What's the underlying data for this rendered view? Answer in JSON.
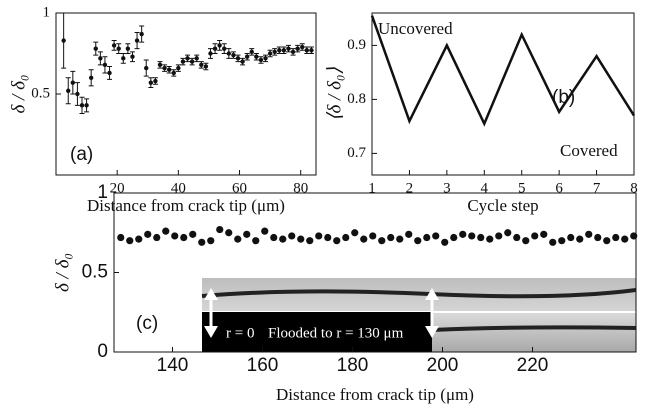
{
  "chart_data": [
    {
      "type": "errorbar",
      "panel_label": "(a)",
      "xlabel": "Distance from crack tip (μm)",
      "ylabel": "δ / δ₀",
      "xlim": [
        0,
        85
      ],
      "ylim": [
        0,
        1
      ],
      "xticks": [
        20,
        40,
        60,
        80
      ],
      "yticks": [
        0.5,
        1
      ],
      "color": "#111111",
      "x": [
        2.5,
        4,
        5.5,
        7,
        8.5,
        10,
        11.5,
        13,
        14.5,
        16,
        17.5,
        19,
        20.5,
        22,
        23.5,
        25,
        26.5,
        28,
        29.5,
        31,
        32.5,
        34,
        35.5,
        37,
        38.5,
        40,
        41.5,
        43,
        44.5,
        46,
        47.5,
        49,
        50.5,
        52,
        53.5,
        55,
        56.5,
        58,
        59.5,
        61,
        62.5,
        64,
        65.5,
        67,
        68.5,
        70,
        71.5,
        73,
        74.5,
        76,
        77.5,
        79,
        80.5,
        82,
        83.5
      ],
      "values": [
        0.83,
        0.52,
        0.57,
        0.5,
        0.43,
        0.43,
        0.6,
        0.78,
        0.72,
        0.68,
        0.63,
        0.8,
        0.78,
        0.72,
        0.78,
        0.73,
        0.83,
        0.87,
        0.66,
        0.57,
        0.58,
        0.68,
        0.66,
        0.65,
        0.63,
        0.66,
        0.7,
        0.72,
        0.7,
        0.72,
        0.68,
        0.67,
        0.75,
        0.78,
        0.8,
        0.78,
        0.75,
        0.74,
        0.72,
        0.7,
        0.73,
        0.76,
        0.73,
        0.71,
        0.72,
        0.75,
        0.76,
        0.77,
        0.77,
        0.78,
        0.76,
        0.78,
        0.79,
        0.77,
        0.77
      ],
      "errors": [
        0.17,
        0.08,
        0.07,
        0.07,
        0.05,
        0.04,
        0.05,
        0.04,
        0.04,
        0.05,
        0.04,
        0.03,
        0.03,
        0.03,
        0.03,
        0.03,
        0.05,
        0.05,
        0.05,
        0.03,
        0.02,
        0.02,
        0.02,
        0.02,
        0.02,
        0.02,
        0.02,
        0.02,
        0.02,
        0.02,
        0.02,
        0.02,
        0.03,
        0.03,
        0.03,
        0.03,
        0.03,
        0.02,
        0.02,
        0.02,
        0.02,
        0.02,
        0.02,
        0.02,
        0.02,
        0.02,
        0.02,
        0.02,
        0.02,
        0.02,
        0.02,
        0.02,
        0.02,
        0.02,
        0.02
      ]
    },
    {
      "type": "line",
      "panel_label": "(b)",
      "xlabel": "Cycle step",
      "ylabel": "⟨δ / δ₀⟩",
      "annotations": [
        "Uncovered",
        "Covered"
      ],
      "xlim": [
        1,
        8
      ],
      "ylim": [
        0.66,
        0.96
      ],
      "xticks": [
        1,
        2,
        3,
        4,
        5,
        6,
        7,
        8
      ],
      "yticks": [
        0.7,
        0.8,
        0.9
      ],
      "color": "#111111",
      "x": [
        1,
        2,
        3,
        4,
        5,
        6,
        7,
        8
      ],
      "values": [
        0.955,
        0.76,
        0.9,
        0.755,
        0.92,
        0.777,
        0.88,
        0.77
      ]
    },
    {
      "type": "scatter",
      "panel_label": "(c)",
      "xlabel": "Distance from crack tip (μm)",
      "ylabel": "δ / δ₀",
      "annotations": [
        "r = 0",
        "Flooded to r = 130 μm"
      ],
      "xlim": [
        127,
        243
      ],
      "ylim": [
        0,
        1
      ],
      "xticks": [
        140,
        160,
        180,
        200,
        220
      ],
      "yticks": [
        0,
        0.5,
        1
      ],
      "color": "#111111",
      "x": [
        128.5,
        130.5,
        132.5,
        134.5,
        136.5,
        138.5,
        140.5,
        142.5,
        144.5,
        146.5,
        148.5,
        150.5,
        152.5,
        154.5,
        156.5,
        158.5,
        160.5,
        162.5,
        164.5,
        166.5,
        168.5,
        170.5,
        172.5,
        174.5,
        176.5,
        178.5,
        180.5,
        182.5,
        184.5,
        186.5,
        188.5,
        190.5,
        192.5,
        194.5,
        196.5,
        198.5,
        200.5,
        202.5,
        204.5,
        206.5,
        208.5,
        210.5,
        212.5,
        214.5,
        216.5,
        218.5,
        220.5,
        222.5,
        224.5,
        226.5,
        228.5,
        230.5,
        232.5,
        234.5,
        236.5,
        238.5,
        240.5,
        242.5
      ],
      "values": [
        0.72,
        0.7,
        0.71,
        0.74,
        0.72,
        0.76,
        0.73,
        0.72,
        0.74,
        0.69,
        0.7,
        0.77,
        0.75,
        0.71,
        0.74,
        0.7,
        0.76,
        0.72,
        0.71,
        0.73,
        0.71,
        0.7,
        0.73,
        0.72,
        0.7,
        0.72,
        0.75,
        0.71,
        0.73,
        0.7,
        0.72,
        0.71,
        0.74,
        0.7,
        0.72,
        0.73,
        0.69,
        0.72,
        0.74,
        0.73,
        0.72,
        0.71,
        0.73,
        0.75,
        0.72,
        0.7,
        0.73,
        0.74,
        0.69,
        0.7,
        0.72,
        0.71,
        0.74,
        0.72,
        0.7,
        0.72,
        0.71,
        0.73
      ]
    }
  ]
}
